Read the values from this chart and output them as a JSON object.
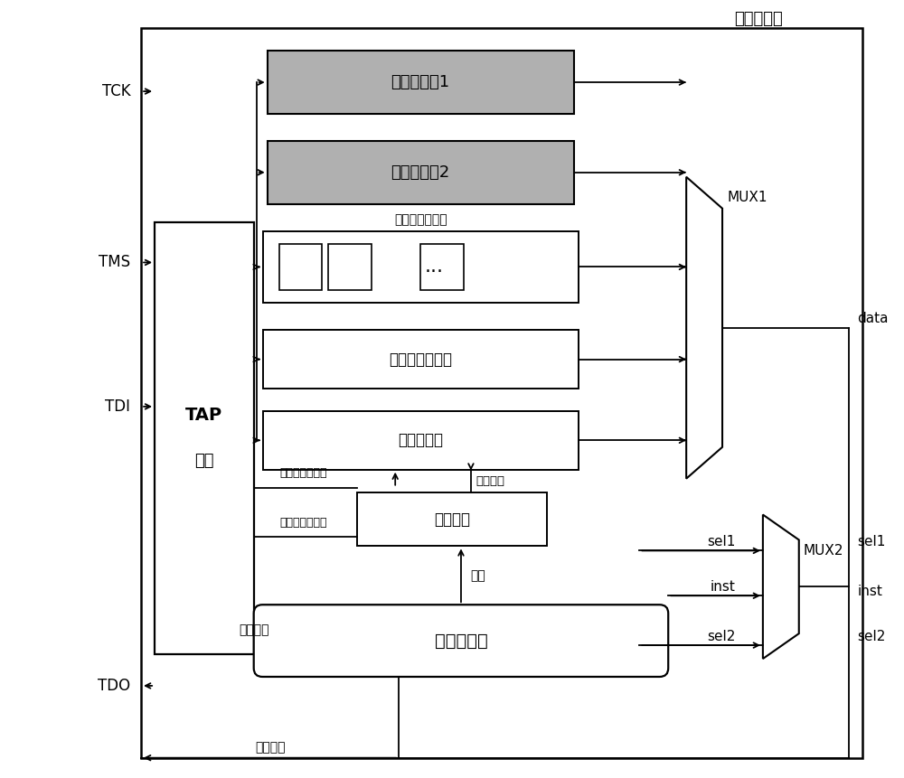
{
  "fig_width": 10.0,
  "fig_height": 8.61,
  "bg_color": "#ffffff",
  "title": "数据寄存器",
  "label_user1": "用户自定义1",
  "label_user2": "用户自定义2",
  "label_boundary_title": "边界扫描寄存器",
  "label_idcode": "器件标识寄存器",
  "label_bypass": "旁路寄存器",
  "label_instdec": "指令译码",
  "label_instreg": "指令寄存器",
  "label_tap_line1": "TAP",
  "label_tap_line2": "控制",
  "label_mux1": "MUX1",
  "label_mux2": "MUX2",
  "label_data_ctrl": "数据寄存器控制",
  "label_inst_ctrl": "指令寄存器控制",
  "label_decode_sel": "译码选择",
  "label_inst_arrow": "指令",
  "label_serial_in": "串行输入",
  "label_serial_out": "串行输出",
  "label_data": "data",
  "label_sel1": "sel1",
  "label_inst": "inst",
  "label_sel2": "sel2",
  "signals": [
    "TCK",
    "TMS",
    "TDI",
    "TDO"
  ]
}
